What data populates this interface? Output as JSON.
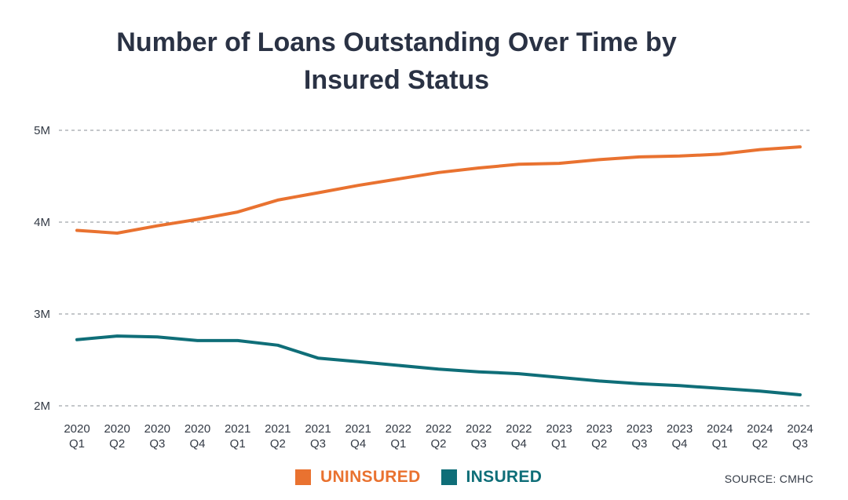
{
  "title_line1": "Number of Loans Outstanding Over Time by",
  "title_line2": "Insured Status",
  "source": "SOURCE: CMHC",
  "colors": {
    "uninsured": "#e97230",
    "insured": "#0f6e78",
    "text": "#2a3244"
  },
  "chart_data": {
    "type": "line",
    "title": "Number of Loans Outstanding Over Time by Insured Status",
    "xlabel": "",
    "ylabel": "",
    "ylim": [
      2000000,
      5000000
    ],
    "yticks": [
      {
        "value": 5000000,
        "label": "5M"
      },
      {
        "value": 4000000,
        "label": "4M"
      },
      {
        "value": 3000000,
        "label": "3M"
      },
      {
        "value": 2000000,
        "label": "2M"
      }
    ],
    "grid": true,
    "legend": "bottom",
    "categories": [
      [
        "2020",
        "Q1"
      ],
      [
        "2020",
        "Q2"
      ],
      [
        "2020",
        "Q3"
      ],
      [
        "2020",
        "Q4"
      ],
      [
        "2021",
        "Q1"
      ],
      [
        "2021",
        "Q2"
      ],
      [
        "2021",
        "Q3"
      ],
      [
        "2021",
        "Q4"
      ],
      [
        "2022",
        "Q1"
      ],
      [
        "2022",
        "Q2"
      ],
      [
        "2022",
        "Q3"
      ],
      [
        "2022",
        "Q4"
      ],
      [
        "2023",
        "Q1"
      ],
      [
        "2023",
        "Q2"
      ],
      [
        "2023",
        "Q3"
      ],
      [
        "2023",
        "Q4"
      ],
      [
        "2024",
        "Q1"
      ],
      [
        "2024",
        "Q2"
      ],
      [
        "2024",
        "Q3"
      ]
    ],
    "series": [
      {
        "name": "UNINSURED",
        "color": "#e97230",
        "values": [
          3910000,
          3880000,
          3960000,
          4030000,
          4110000,
          4240000,
          4320000,
          4400000,
          4470000,
          4540000,
          4590000,
          4630000,
          4640000,
          4680000,
          4710000,
          4720000,
          4740000,
          4790000,
          4820000
        ]
      },
      {
        "name": "INSURED",
        "color": "#0f6e78",
        "values": [
          2720000,
          2760000,
          2750000,
          2710000,
          2710000,
          2660000,
          2520000,
          2480000,
          2440000,
          2400000,
          2370000,
          2350000,
          2310000,
          2270000,
          2240000,
          2220000,
          2190000,
          2160000,
          2120000
        ]
      }
    ]
  }
}
